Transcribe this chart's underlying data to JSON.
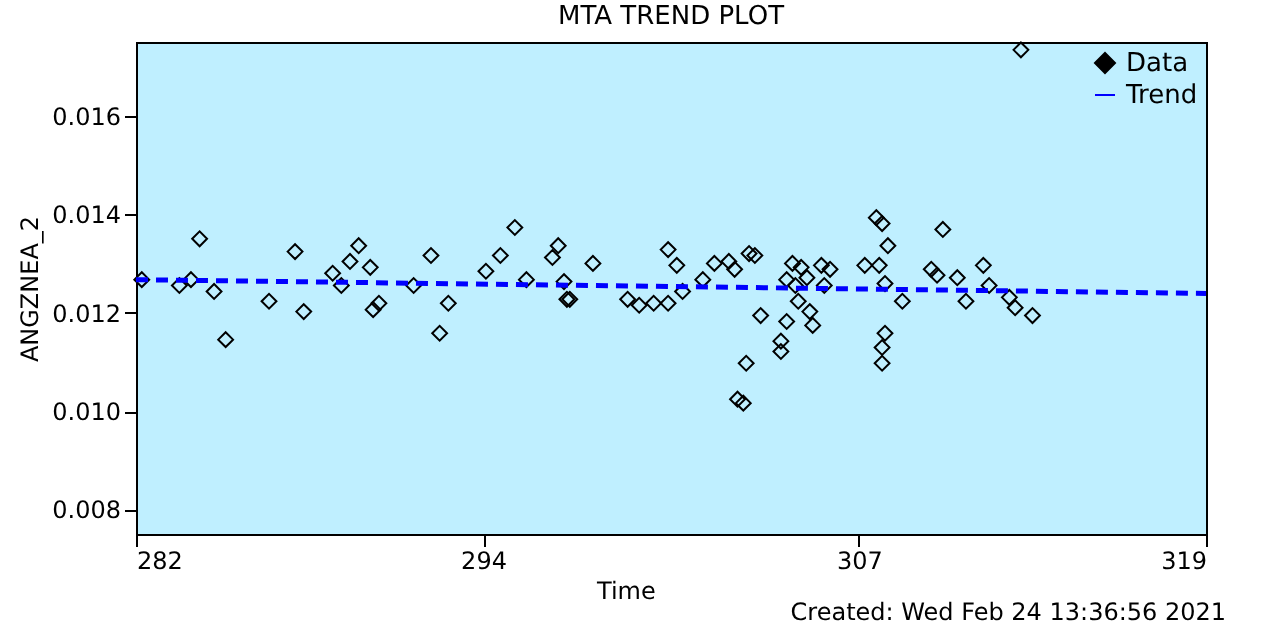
{
  "chart_data": {
    "type": "scatter",
    "title": "MTA TREND PLOT",
    "xlabel": "Time",
    "ylabel": "ANGZNEA_2",
    "annotations": [
      "Created: Wed Feb 24 13:36:56 2021"
    ],
    "xlim": [
      282,
      319
    ],
    "xticks": [
      282,
      294,
      307,
      319
    ],
    "ylim": [
      0.0075,
      0.0175
    ],
    "yticks": [
      {
        "value": 0.008,
        "label": "0.008"
      },
      {
        "value": 0.01,
        "label": "0.010"
      },
      {
        "value": 0.012,
        "label": "0.012"
      },
      {
        "value": 0.014,
        "label": "0.014"
      },
      {
        "value": 0.016,
        "label": "0.016"
      }
    ],
    "legend": "top right",
    "grid": false,
    "series": [
      {
        "name": "Data",
        "marker": "diamond",
        "color": "#000000",
        "x": [
          282.2,
          283.5,
          283.9,
          284.2,
          284.7,
          285.1,
          286.6,
          287.5,
          287.8,
          288.8,
          289.1,
          289.4,
          289.7,
          290.1,
          290.2,
          290.4,
          291.6,
          292.2,
          292.5,
          292.8,
          294.1,
          294.6,
          295.1,
          295.5,
          296.4,
          296.6,
          296.8,
          296.9,
          297.0,
          297.8,
          299.0,
          299.4,
          299.9,
          300.4,
          300.4,
          300.7,
          300.9,
          301.6,
          302.0,
          302.5,
          302.7,
          303.2,
          303.4,
          303.6,
          303.1,
          302.8,
          303.0,
          304.3,
          304.3,
          304.5,
          304.5,
          304.7,
          304.8,
          304.9,
          305.0,
          305.2,
          305.3,
          305.4,
          305.7,
          305.8,
          306.0,
          307.2,
          307.6,
          307.8,
          308.0,
          307.7,
          307.9,
          307.9,
          307.8,
          307.8,
          308.5,
          309.5,
          309.7,
          309.9,
          310.4,
          310.7,
          311.3,
          311.5,
          312.2,
          312.4,
          313.0,
          312.6
        ],
        "values": [
          0.01267,
          0.01255,
          0.01267,
          0.0135,
          0.01243,
          0.01145,
          0.01223,
          0.01324,
          0.01202,
          0.0128,
          0.01255,
          0.01304,
          0.01336,
          0.01292,
          0.01206,
          0.01219,
          0.01255,
          0.01316,
          0.01158,
          0.01219,
          0.01284,
          0.01316,
          0.01373,
          0.01267,
          0.01312,
          0.01336,
          0.01263,
          0.01227,
          0.01227,
          0.013,
          0.01227,
          0.01215,
          0.01219,
          0.01328,
          0.01219,
          0.01296,
          0.01243,
          0.01267,
          0.013,
          0.01304,
          0.01288,
          0.0132,
          0.01316,
          0.01194,
          0.01097,
          0.01024,
          0.01016,
          0.01121,
          0.01142,
          0.01182,
          0.01267,
          0.013,
          0.01255,
          0.01223,
          0.01292,
          0.01271,
          0.01202,
          0.01174,
          0.01296,
          0.01255,
          0.01288,
          0.01296,
          0.01393,
          0.01381,
          0.01336,
          0.01296,
          0.01259,
          0.01158,
          0.01129,
          0.01097,
          0.01223,
          0.01288,
          0.01276,
          0.01369,
          0.01271,
          0.01223,
          0.01296,
          0.01255,
          0.01231,
          0.0121,
          0.01194,
          0.01734
        ]
      },
      {
        "name": "Trend",
        "type": "line",
        "line_style": "dashed",
        "color": "#0000ff",
        "x": [
          282,
          319
        ],
        "values": [
          0.01267,
          0.01239
        ]
      }
    ]
  }
}
